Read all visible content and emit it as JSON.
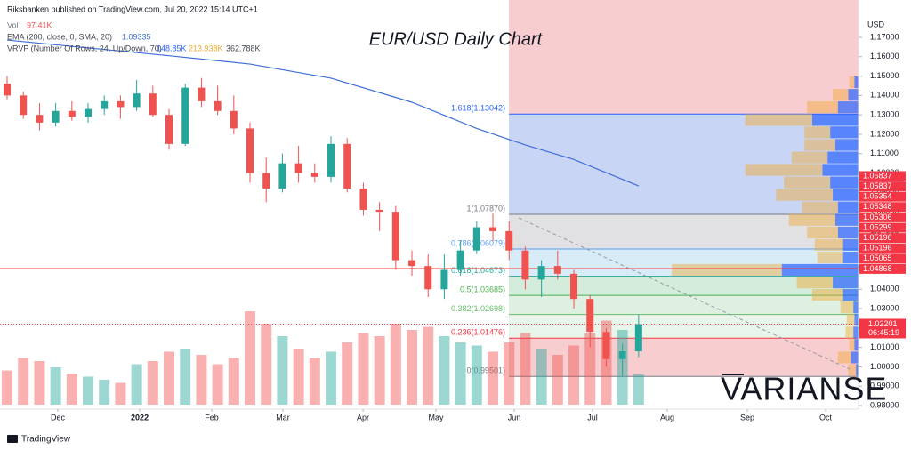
{
  "header": {
    "publisher": "Riksbanken published on TradingView.com, Jul 20, 2022 15:14 UTC+1",
    "vol_name": "Vol",
    "vol_value": "97.41K",
    "ema_name": "EMA (200, close, 0, SMA, 20)",
    "ema_value": "1.09335",
    "vrvp_name": "VRVP (Number Of Rows, 24, Up/Down, 70)",
    "vrvp_up": "148.85K",
    "vrvp_down": "213.938K",
    "vrvp_total": "362.788K"
  },
  "chart_data": {
    "type": "candlestick",
    "title": "EUR/USD Daily Chart",
    "y_axis_label": "USD",
    "ylim": [
      0.97817,
      1.18927
    ],
    "yticks": [
      {
        "value": 1.17,
        "label": "1.17000"
      },
      {
        "value": 1.16,
        "label": "1.16000"
      },
      {
        "value": 1.15,
        "label": "1.15000"
      },
      {
        "value": 1.14,
        "label": "1.14000"
      },
      {
        "value": 1.13,
        "label": "1.13000"
      },
      {
        "value": 1.12,
        "label": "1.12000"
      },
      {
        "value": 1.11,
        "label": "1.11000"
      },
      {
        "value": 1.1,
        "label": "1.10000"
      },
      {
        "value": 1.09,
        "label": "1.09000"
      },
      {
        "value": 1.08,
        "label": "1.08000"
      },
      {
        "value": 1.07,
        "label": "1.07000"
      },
      {
        "value": 1.06,
        "label": "1.06000"
      },
      {
        "value": 1.05,
        "label": "1.05000"
      },
      {
        "value": 1.04,
        "label": "1.04000"
      },
      {
        "value": 1.03,
        "label": "1.03000"
      },
      {
        "value": 1.02,
        "label": "1.02000"
      },
      {
        "value": 1.01,
        "label": "1.01000"
      },
      {
        "value": 1.0,
        "label": "1.00000"
      },
      {
        "value": 0.99,
        "label": "0.99000"
      },
      {
        "value": 0.98,
        "label": "0.98000"
      }
    ],
    "xlim": [
      -0.44,
      52.58
    ],
    "xticks": [
      {
        "value": 3.13,
        "label": "Dec"
      },
      {
        "value": 8.19,
        "label": "2022"
      },
      {
        "value": 12.64,
        "label": "Feb"
      },
      {
        "value": 17.03,
        "label": "Mar"
      },
      {
        "value": 21.98,
        "label": "Apr"
      },
      {
        "value": 26.48,
        "label": "May"
      },
      {
        "value": 31.32,
        "label": "Jun"
      },
      {
        "value": 36.15,
        "label": "Jul"
      },
      {
        "value": 40.77,
        "label": "Aug"
      },
      {
        "value": 45.71,
        "label": "Sep"
      },
      {
        "value": 50.55,
        "label": "Oct"
      }
    ],
    "up_color": "#26a69a",
    "down_color": "#ef5350",
    "candles": {
      "open": [
        1.146,
        1.14,
        1.13,
        1.126,
        1.132,
        1.129,
        1.133,
        1.137,
        1.134,
        1.141,
        1.13,
        1.115,
        1.144,
        1.137,
        1.132,
        1.123,
        1.1,
        1.092,
        1.105,
        1.1,
        1.098,
        1.115,
        1.092,
        1.081,
        1.08,
        1.055,
        1.052,
        1.04,
        1.05,
        1.06,
        1.072,
        1.07,
        1.06,
        1.045,
        1.052,
        1.048,
        1.035,
        1.018,
        1.004,
        1.008
      ],
      "high": [
        1.15,
        1.142,
        1.136,
        1.136,
        1.137,
        1.136,
        1.14,
        1.14,
        1.148,
        1.145,
        1.133,
        1.146,
        1.149,
        1.145,
        1.14,
        1.126,
        1.108,
        1.11,
        1.114,
        1.105,
        1.119,
        1.118,
        1.095,
        1.085,
        1.083,
        1.06,
        1.058,
        1.058,
        1.065,
        1.075,
        1.079,
        1.075,
        1.062,
        1.055,
        1.06,
        1.05,
        1.037,
        1.02,
        1.012,
        1.027
      ],
      "low": [
        1.138,
        1.128,
        1.122,
        1.124,
        1.127,
        1.126,
        1.13,
        1.128,
        1.132,
        1.129,
        1.112,
        1.114,
        1.134,
        1.13,
        1.12,
        1.095,
        1.085,
        1.09,
        1.095,
        1.095,
        1.095,
        1.09,
        1.078,
        1.07,
        1.05,
        1.047,
        1.036,
        1.035,
        1.047,
        1.058,
        1.065,
        1.055,
        1.04,
        1.036,
        1.045,
        1.03,
        1.01,
        1.0,
        0.995,
        1.005
      ],
      "close": [
        1.14,
        1.13,
        1.126,
        1.132,
        1.129,
        1.133,
        1.137,
        1.134,
        1.141,
        1.13,
        1.115,
        1.144,
        1.137,
        1.132,
        1.123,
        1.1,
        1.092,
        1.105,
        1.1,
        1.098,
        1.115,
        1.092,
        1.081,
        1.08,
        1.055,
        1.052,
        1.04,
        1.05,
        1.06,
        1.072,
        1.07,
        1.06,
        1.045,
        1.052,
        1.048,
        1.035,
        1.018,
        1.004,
        1.008,
        1.022
      ]
    },
    "volume": [
      110,
      150,
      140,
      120,
      100,
      90,
      80,
      70,
      130,
      140,
      170,
      180,
      160,
      130,
      150,
      300,
      260,
      220,
      180,
      150,
      170,
      200,
      230,
      220,
      260,
      240,
      250,
      220,
      200,
      190,
      170,
      200,
      230,
      180,
      160,
      190,
      230,
      270,
      240,
      97.41
    ],
    "ema": {
      "color": "#3f6ed8",
      "x": [
        0,
        10,
        15,
        20,
        25,
        29,
        32,
        35,
        39
      ],
      "values": [
        1.1686,
        1.1605,
        1.1562,
        1.1489,
        1.1365,
        1.123,
        1.1145,
        1.107,
        1.09335
      ]
    },
    "vrvp": {
      "up_color": "#2962ff",
      "down_color": "#f0a830",
      "price": [
        1.1468,
        1.1403,
        1.1339,
        1.1274,
        1.121,
        1.1145,
        1.108,
        1.1016,
        1.0951,
        1.0887,
        1.0822,
        1.0758,
        1.0693,
        1.0629,
        1.0564,
        1.05,
        1.0435,
        1.0371,
        1.0306,
        1.0242,
        1.0177,
        1.0113,
        1.0048,
        0.9984
      ],
      "up": [
        8,
        20,
        40,
        90,
        55,
        45,
        60,
        70,
        55,
        50,
        40,
        45,
        40,
        30,
        30,
        148.85,
        50,
        30,
        10,
        8,
        10,
        8,
        15,
        5
      ],
      "down": [
        10,
        30,
        60,
        130,
        50,
        60,
        70,
        150,
        90,
        110,
        70,
        90,
        60,
        55,
        50,
        213.938,
        70,
        60,
        25,
        15,
        15,
        10,
        25,
        15
      ]
    },
    "fib": {
      "anchor_x": 30.99,
      "top_fill": "#f8cdd0",
      "levels": [
        {
          "label": "1.618(1.13042)",
          "level": 1.618,
          "price": 1.13042,
          "color": "#2962ff",
          "fill": "#c9d5f5"
        },
        {
          "label": "1(1.07870)",
          "level": 1,
          "price": 1.0787,
          "color": "#787b86",
          "fill": "#e1e1e3"
        },
        {
          "label": "0.786(1.06079)",
          "level": 0.786,
          "price": 1.06079,
          "color": "#5b9cf6",
          "fill": "#d8ecf7"
        },
        {
          "label": "0.618(1.04673)",
          "level": 0.618,
          "price": 1.04673,
          "color": "#26a69a",
          "fill": "#d3ecdb"
        },
        {
          "label": "0.5(1.03685)",
          "level": 0.5,
          "price": 1.03685,
          "color": "#4caf50",
          "fill": "#def0e2"
        },
        {
          "label": "0.382(1.02698)",
          "level": 0.382,
          "price": 1.02698,
          "color": "#66bb6a",
          "fill": "#e8f5ea"
        },
        {
          "label": "0.236(1.01476)",
          "level": 0.236,
          "price": 1.01476,
          "color": "#f23645",
          "fill": "#f8cdd0"
        },
        {
          "label": "0(0.99501)",
          "level": 0,
          "price": 0.99501,
          "color": "#787b86"
        }
      ]
    },
    "hline": {
      "price": 1.05065,
      "color": "#f23645"
    },
    "price_labels": [
      1.05837,
      1.05837,
      1.05354,
      1.05348,
      1.05306,
      1.05299,
      1.05196,
      1.05196,
      1.05065,
      1.04868
    ],
    "last_price": 1.02201,
    "countdown": "06:45:19",
    "watermark": "VARIANSE"
  },
  "footer": {
    "brand": "TradingView"
  }
}
